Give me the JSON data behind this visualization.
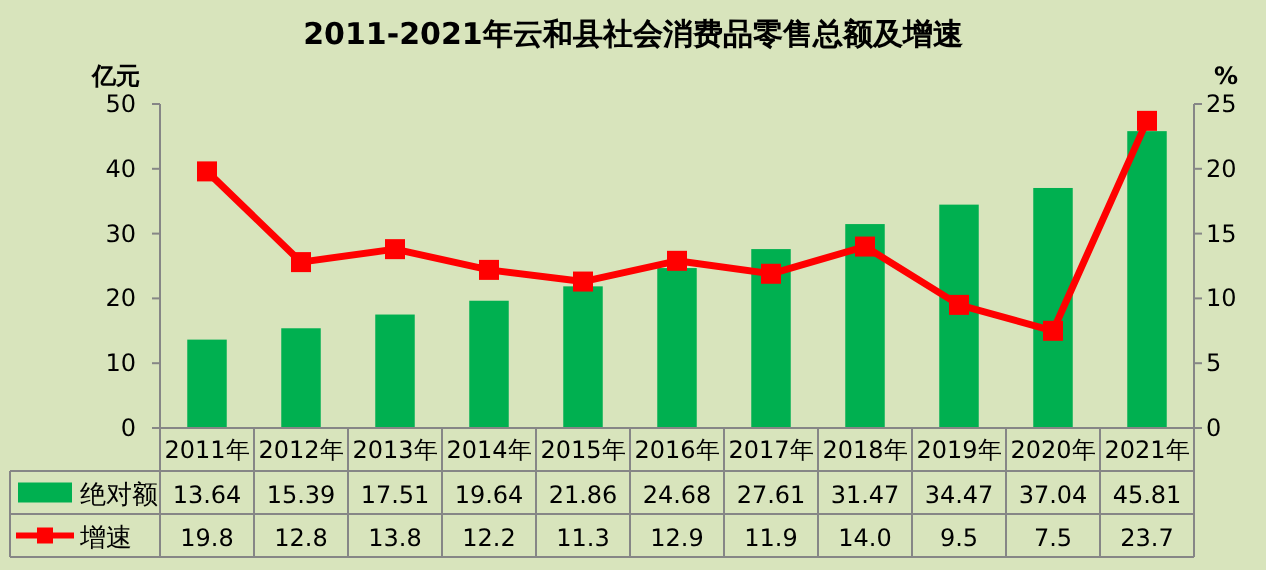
{
  "chart_data": {
    "type": "bar",
    "title": "2011-2021年云和县社会消费品零售总额及增速",
    "ylabel": "亿元",
    "y2label": "%",
    "categories": [
      "2011年",
      "2012年",
      "2013年",
      "2014年",
      "2015年",
      "2016年",
      "2017年",
      "2018年",
      "2019年",
      "2020年",
      "2021年"
    ],
    "series": [
      {
        "name": "绝对额",
        "color": "#00b050",
        "values": [
          13.64,
          15.39,
          17.51,
          19.64,
          21.86,
          24.68,
          27.61,
          31.47,
          34.47,
          37.04,
          45.81
        ],
        "value_labels": [
          "13.64",
          "15.39",
          "17.51",
          "19.64",
          "21.86",
          "24.68",
          "27.61",
          "31.47",
          "34.47",
          "37.04",
          "45.81"
        ]
      },
      {
        "name": "增速",
        "type": "line",
        "axis": "y2",
        "color": "#ff0000",
        "marker": "square",
        "values": [
          19.8,
          12.8,
          13.8,
          12.2,
          11.3,
          12.9,
          11.9,
          14.0,
          9.5,
          7.5,
          23.7
        ],
        "value_labels": [
          "19.8",
          "12.8",
          "13.8",
          "12.2",
          "11.3",
          "12.9",
          "11.9",
          "14.0",
          "9.5",
          "7.5",
          "23.7"
        ]
      }
    ],
    "ylim": [
      0,
      50
    ],
    "yticks": [
      0,
      10,
      20,
      30,
      40,
      50
    ],
    "y2lim": [
      0,
      25
    ],
    "y2ticks": [
      0,
      5,
      10,
      15,
      20,
      25
    ],
    "legend": "bottom"
  }
}
